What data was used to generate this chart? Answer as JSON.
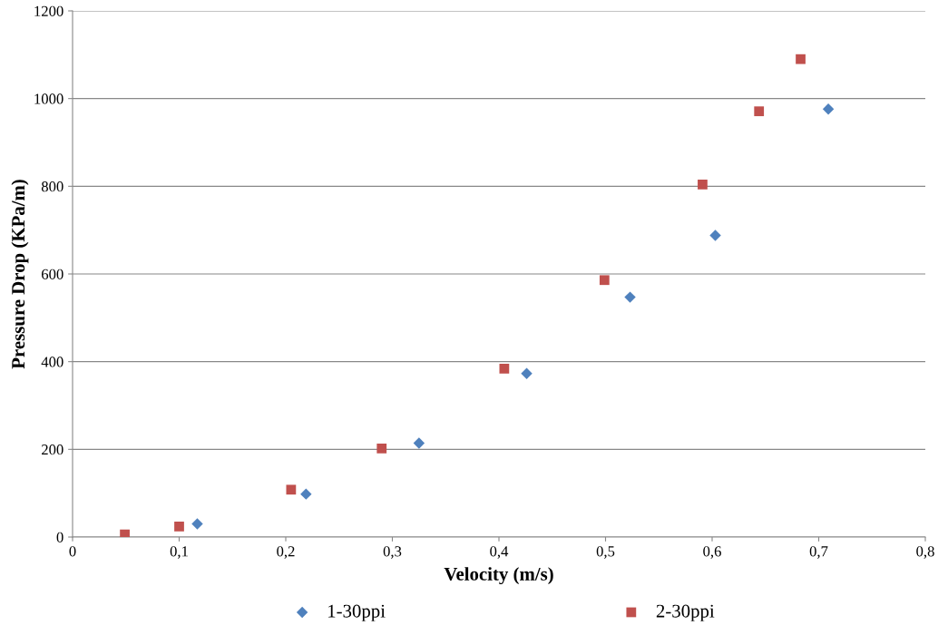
{
  "chart_data": {
    "type": "scatter",
    "xlabel": "Velocity (m/s)",
    "ylabel": "Pressure Drop (KPa/m)",
    "xlim": [
      0,
      0.8
    ],
    "ylim": [
      0,
      1200
    ],
    "xticks": [
      0,
      {
        "value": 0.1,
        "label": "0,1"
      },
      {
        "value": 0.2,
        "label": "0,2"
      },
      {
        "value": 0.3,
        "label": "0,3"
      },
      {
        "value": 0.4,
        "label": "0,4"
      },
      {
        "value": 0.5,
        "label": "0,5"
      },
      {
        "value": 0.6,
        "label": "0,6"
      },
      {
        "value": 0.7,
        "label": "0,7"
      },
      {
        "value": 0.8,
        "label": "0,8"
      }
    ],
    "yticks": [
      0,
      200,
      400,
      600,
      800,
      1000,
      1200
    ],
    "grid": "y",
    "legend": "bottom",
    "series": [
      {
        "name": "1-30ppi",
        "color": "#4f81bd",
        "marker": "diamond",
        "x": [
          0.117,
          0.219,
          0.325,
          0.426,
          0.523,
          0.603,
          0.709
        ],
        "values": [
          30,
          98,
          214,
          373,
          547,
          688,
          976
        ]
      },
      {
        "name": "2-30ppi",
        "color": "#c0504d",
        "marker": "square",
        "x": [
          0.049,
          0.1,
          0.205,
          0.29,
          0.405,
          0.499,
          0.591,
          0.644,
          0.683
        ],
        "values": [
          6,
          24,
          108,
          202,
          384,
          586,
          804,
          971,
          1090
        ]
      }
    ]
  }
}
